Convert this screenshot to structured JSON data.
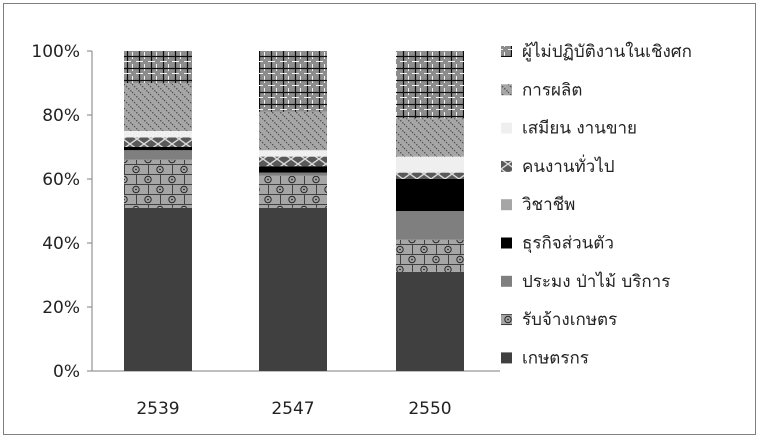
{
  "chart_data": {
    "type": "bar",
    "stacked": true,
    "percent": true,
    "title": "",
    "xlabel": "",
    "ylabel": "",
    "categories": [
      "2539",
      "2547",
      "2550"
    ],
    "ylim": [
      0,
      100
    ],
    "yticks": [
      "0%",
      "20%",
      "40%",
      "60%",
      "80%",
      "100%"
    ],
    "legend_position": "right",
    "grid": false,
    "series": [
      {
        "name": "เกษตรกร",
        "values": [
          51,
          51,
          31
        ],
        "color": "#404040",
        "pattern": "solid"
      },
      {
        "name": "รับจ้างเกษตร",
        "values": [
          15,
          10,
          10
        ],
        "color": "#a6a6a6",
        "pattern": "bricks-dots"
      },
      {
        "name": "ประมง ป่าไม้ บริการ",
        "values": [
          3,
          1,
          9
        ],
        "color": "#7f7f7f",
        "pattern": "solid"
      },
      {
        "name": "ธุรกิจส่วนตัว",
        "values": [
          1,
          2,
          10
        ],
        "color": "#000000",
        "pattern": "solid"
      },
      {
        "name": "วิชาชีพ",
        "values": [
          0,
          0,
          0
        ],
        "color": "#a6a6a6",
        "pattern": "solid"
      },
      {
        "name": "คนงานทั่วไป",
        "values": [
          3,
          3,
          2
        ],
        "color": "#595959",
        "pattern": "cross"
      },
      {
        "name": "เสมียน งานขาย",
        "values": [
          2,
          2,
          5
        ],
        "color": "#efefef",
        "pattern": "solid"
      },
      {
        "name": "การผลิต",
        "values": [
          15,
          12,
          12
        ],
        "color": "#a6a6a6",
        "pattern": "diagonal"
      },
      {
        "name": "ผู้ไม่ปฏิบัติงานในเชิงศก",
        "values": [
          10,
          19,
          21
        ],
        "color": "#8c8c8c",
        "pattern": "plaid"
      }
    ]
  }
}
